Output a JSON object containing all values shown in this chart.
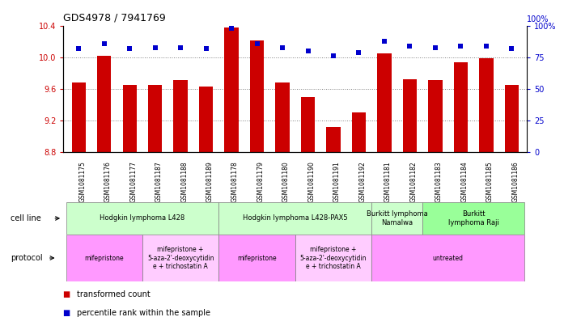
{
  "title": "GDS4978 / 7941769",
  "samples": [
    "GSM1081175",
    "GSM1081176",
    "GSM1081177",
    "GSM1081187",
    "GSM1081188",
    "GSM1081189",
    "GSM1081178",
    "GSM1081179",
    "GSM1081180",
    "GSM1081190",
    "GSM1081191",
    "GSM1081192",
    "GSM1081181",
    "GSM1081182",
    "GSM1081183",
    "GSM1081184",
    "GSM1081185",
    "GSM1081186"
  ],
  "bar_values": [
    9.68,
    10.02,
    9.65,
    9.65,
    9.71,
    9.63,
    10.38,
    10.22,
    9.68,
    9.5,
    9.12,
    9.3,
    10.05,
    9.72,
    9.71,
    9.94,
    9.99,
    9.65
  ],
  "dot_values": [
    82,
    86,
    82,
    83,
    83,
    82,
    98,
    86,
    83,
    80,
    76,
    79,
    88,
    84,
    83,
    84,
    84,
    82
  ],
  "bar_color": "#cc0000",
  "dot_color": "#0000cc",
  "ylim_left": [
    8.8,
    10.4
  ],
  "ylim_right": [
    0,
    100
  ],
  "yticks_left": [
    8.8,
    9.2,
    9.6,
    10.0,
    10.4
  ],
  "yticks_right": [
    0,
    25,
    50,
    75,
    100
  ],
  "cell_line_groups": [
    {
      "label": "Hodgkin lymphoma L428",
      "start": 0,
      "end": 5,
      "color": "#ccffcc"
    },
    {
      "label": "Hodgkin lymphoma L428-PAX5",
      "start": 6,
      "end": 11,
      "color": "#ccffcc"
    },
    {
      "label": "Burkitt lymphoma\nNamalwa",
      "start": 12,
      "end": 13,
      "color": "#ccffcc"
    },
    {
      "label": "Burkitt\nlymphoma Raji",
      "start": 14,
      "end": 17,
      "color": "#99ff99"
    }
  ],
  "protocol_groups": [
    {
      "label": "mifepristone",
      "start": 0,
      "end": 2,
      "color": "#ff99ff"
    },
    {
      "label": "mifepristone +\n5-aza-2'-deoxycytidin\ne + trichostatin A",
      "start": 3,
      "end": 5,
      "color": "#ffccff"
    },
    {
      "label": "mifepristone",
      "start": 6,
      "end": 8,
      "color": "#ff99ff"
    },
    {
      "label": "mifepristone +\n5-aza-2'-deoxycytidin\ne + trichostatin A",
      "start": 9,
      "end": 11,
      "color": "#ffccff"
    },
    {
      "label": "untreated",
      "start": 12,
      "end": 17,
      "color": "#ff99ff"
    }
  ],
  "legend_items": [
    {
      "label": "transformed count",
      "color": "#cc0000"
    },
    {
      "label": "percentile rank within the sample",
      "color": "#0000cc"
    }
  ],
  "cell_line_row_label": "cell line",
  "protocol_row_label": "protocol",
  "xtick_bg_color": "#cccccc"
}
